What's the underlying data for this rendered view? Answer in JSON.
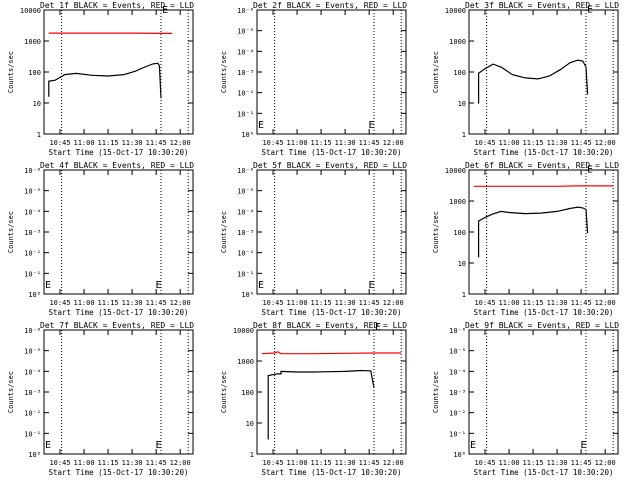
{
  "figure": {
    "xtick_labels": [
      "10:45",
      "11:00",
      "11:15",
      "11:30",
      "11:45",
      "12:00"
    ],
    "xlabel": "Start Time (15-Oct-17 10:30:20)",
    "ylabel": "Counts/sec",
    "colors": {
      "events": "#000000",
      "lld": "#ff0000",
      "axes": "#000000",
      "background": "#ffffff"
    }
  },
  "chart_data": [
    {
      "type": "line",
      "detector": "1f",
      "title": "Det 1f BLACK = Events, RED = LLD",
      "yscale": "log",
      "ylim": [
        1,
        15000
      ],
      "ytick_labels": [
        "1",
        "10",
        "100",
        "1000",
        "10000"
      ],
      "xlim": [
        "10:35",
        "12:08"
      ],
      "vlines": [
        "10:46",
        "11:48",
        "12:05"
      ],
      "markers": [
        {
          "text": "E",
          "x": "11:48",
          "y": 12000
        }
      ],
      "series": [
        {
          "role": "events",
          "points": [
            [
              "10:38",
              18
            ],
            [
              "10:38",
              60
            ],
            [
              "10:42",
              65
            ],
            [
              "10:48",
              100
            ],
            [
              "10:55",
              110
            ],
            [
              "11:05",
              95
            ],
            [
              "11:15",
              90
            ],
            [
              "11:25",
              100
            ],
            [
              "11:32",
              130
            ],
            [
              "11:38",
              180
            ],
            [
              "11:43",
              230
            ],
            [
              "11:46",
              240
            ],
            [
              "11:47",
              200
            ],
            [
              "11:48",
              16
            ]
          ]
        },
        {
          "role": "lld",
          "points": [
            [
              "10:38",
              2500
            ],
            [
              "11:00",
              2500
            ],
            [
              "11:30",
              2500
            ],
            [
              "11:48",
              2450
            ],
            [
              "11:55",
              2450
            ]
          ]
        }
      ]
    },
    {
      "type": "line",
      "detector": "2f",
      "title": "Det 2f BLACK = Events, RED = LLD",
      "yscale": "log",
      "ylim": [
        1,
        1000000
      ],
      "ytick_labels": [
        "10⁰",
        "10⁻¹",
        "10⁻²",
        "10⁻³",
        "10⁻⁴",
        "10⁻⁵",
        "10⁻⁶"
      ],
      "xlim": [
        "10:35",
        "12:08"
      ],
      "vlines": [
        "10:46",
        "11:48",
        "12:05"
      ],
      "markers": [
        {
          "text": "E",
          "x": "10:35",
          "y": 2
        },
        {
          "text": "E",
          "x": "11:44",
          "y": 2
        }
      ],
      "series": []
    },
    {
      "type": "line",
      "detector": "3f",
      "title": "Det 3f BLACK = Events, RED = LLD",
      "yscale": "log",
      "ylim": [
        1,
        12000
      ],
      "ytick_labels": [
        "1",
        "10",
        "100",
        "1000",
        "10000"
      ],
      "xlim": [
        "10:35",
        "12:08"
      ],
      "vlines": [
        "10:46",
        "11:48",
        "12:05"
      ],
      "markers": [
        {
          "text": "E",
          "x": "11:48",
          "y": 10000
        }
      ],
      "series": [
        {
          "role": "events",
          "points": [
            [
              "10:41",
              10
            ],
            [
              "10:41",
              100
            ],
            [
              "10:45",
              140
            ],
            [
              "10:50",
              200
            ],
            [
              "10:55",
              160
            ],
            [
              "11:02",
              90
            ],
            [
              "11:10",
              70
            ],
            [
              "11:18",
              65
            ],
            [
              "11:25",
              80
            ],
            [
              "11:32",
              130
            ],
            [
              "11:38",
              220
            ],
            [
              "11:43",
              270
            ],
            [
              "11:46",
              250
            ],
            [
              "11:48",
              160
            ],
            [
              "11:49",
              20
            ]
          ]
        }
      ]
    },
    {
      "type": "line",
      "detector": "4f",
      "title": "Det 4f BLACK = Events, RED = LLD",
      "yscale": "log",
      "ylim": [
        1,
        1000000
      ],
      "ytick_labels": [
        "10⁰",
        "10⁻¹",
        "10⁻²",
        "10⁻³",
        "10⁻⁴",
        "10⁻⁵",
        "10⁻⁶"
      ],
      "xlim": [
        "10:35",
        "12:08"
      ],
      "vlines": [
        "10:46",
        "11:48",
        "12:05"
      ],
      "markers": [
        {
          "text": "E",
          "x": "10:35",
          "y": 2
        },
        {
          "text": "E",
          "x": "11:44",
          "y": 2
        }
      ],
      "series": []
    },
    {
      "type": "line",
      "detector": "5f",
      "title": "Det 5f BLACK = Events, RED = LLD",
      "yscale": "log",
      "ylim": [
        1,
        1000000
      ],
      "ytick_labels": [
        "10⁰",
        "10⁻¹",
        "10⁻²",
        "10⁻³",
        "10⁻⁴",
        "10⁻⁵",
        "10⁻⁶"
      ],
      "xlim": [
        "10:35",
        "12:08"
      ],
      "vlines": [
        "10:46",
        "11:48",
        "12:05"
      ],
      "markers": [
        {
          "text": "E",
          "x": "10:35",
          "y": 2
        },
        {
          "text": "E",
          "x": "11:44",
          "y": 2
        }
      ],
      "series": []
    },
    {
      "type": "line",
      "detector": "6f",
      "title": "Det 6f BLACK = Events, RED = LLD",
      "yscale": "log",
      "ylim": [
        1,
        12000
      ],
      "ytick_labels": [
        "1",
        "10",
        "100",
        "1000",
        "10000"
      ],
      "xlim": [
        "10:35",
        "12:08"
      ],
      "vlines": [
        "10:46",
        "11:48",
        "12:05"
      ],
      "markers": [
        {
          "text": "E",
          "x": "11:48",
          "y": 10000
        }
      ],
      "series": [
        {
          "role": "events",
          "points": [
            [
              "10:41",
              16
            ],
            [
              "10:41",
              250
            ],
            [
              "10:45",
              330
            ],
            [
              "10:50",
              430
            ],
            [
              "10:55",
              520
            ],
            [
              "11:00",
              480
            ],
            [
              "11:10",
              440
            ],
            [
              "11:20",
              460
            ],
            [
              "11:30",
              520
            ],
            [
              "11:38",
              650
            ],
            [
              "11:43",
              720
            ],
            [
              "11:46",
              680
            ],
            [
              "11:48",
              600
            ],
            [
              "11:49",
              100
            ]
          ]
        },
        {
          "role": "lld",
          "points": [
            [
              "10:38",
              3500
            ],
            [
              "11:00",
              3500
            ],
            [
              "11:30",
              3500
            ],
            [
              "11:42",
              3600
            ],
            [
              "11:48",
              3600
            ],
            [
              "12:05",
              3600
            ]
          ]
        }
      ]
    },
    {
      "type": "line",
      "detector": "7f",
      "title": "Det 7f BLACK = Events, RED = LLD",
      "yscale": "log",
      "ylim": [
        1,
        1000000
      ],
      "ytick_labels": [
        "10⁰",
        "10⁻¹",
        "10⁻²",
        "10⁻³",
        "10⁻⁴",
        "10⁻⁵",
        "10⁻⁶"
      ],
      "xlim": [
        "10:35",
        "12:08"
      ],
      "vlines": [
        "10:46",
        "11:48",
        "12:05"
      ],
      "markers": [
        {
          "text": "E",
          "x": "10:35",
          "y": 2
        },
        {
          "text": "E",
          "x": "11:44",
          "y": 2
        }
      ],
      "series": []
    },
    {
      "type": "line",
      "detector": "8f",
      "title": "Det 8f BLACK = Events, RED = LLD",
      "yscale": "log",
      "ylim": [
        1,
        12000
      ],
      "ytick_labels": [
        "1",
        "10",
        "100",
        "1000",
        "10000"
      ],
      "xlim": [
        "10:35",
        "12:08"
      ],
      "vlines": [
        "10:46",
        "11:48",
        "12:05"
      ],
      "markers": [
        {
          "text": "E",
          "x": "11:48",
          "y": 12000
        }
      ],
      "series": [
        {
          "role": "events",
          "points": [
            [
              "10:42",
              3
            ],
            [
              "10:42",
              380
            ],
            [
              "10:46",
              420
            ],
            [
              "10:48",
              430
            ],
            [
              "10:50",
              430
            ],
            [
              "10:50",
              520
            ],
            [
              "11:00",
              500
            ],
            [
              "11:10",
              500
            ],
            [
              "11:20",
              510
            ],
            [
              "11:30",
              520
            ],
            [
              "11:40",
              560
            ],
            [
              "11:46",
              540
            ],
            [
              "11:48",
              150
            ]
          ]
        },
        {
          "role": "lld",
          "points": [
            [
              "10:38",
              2000
            ],
            [
              "10:46",
              2100
            ],
            [
              "10:48",
              2300
            ],
            [
              "10:50",
              2000
            ],
            [
              "11:10",
              2000
            ],
            [
              "11:30",
              2050
            ],
            [
              "11:48",
              2100
            ],
            [
              "12:05",
              2100
            ]
          ]
        }
      ]
    },
    {
      "type": "line",
      "detector": "9f",
      "title": "Det 9f BLACK = Events, RED = LLD",
      "yscale": "log",
      "ylim": [
        1,
        1000000
      ],
      "ytick_labels": [
        "10⁰",
        "10⁻¹",
        "10⁻²",
        "10⁻³",
        "10⁻⁴",
        "10⁻⁵",
        "10⁻⁶"
      ],
      "xlim": [
        "10:35",
        "12:08"
      ],
      "vlines": [
        "10:46",
        "11:48",
        "12:05"
      ],
      "markers": [
        {
          "text": "E",
          "x": "10:35",
          "y": 2
        },
        {
          "text": "E",
          "x": "11:44",
          "y": 2
        }
      ],
      "series": []
    }
  ]
}
